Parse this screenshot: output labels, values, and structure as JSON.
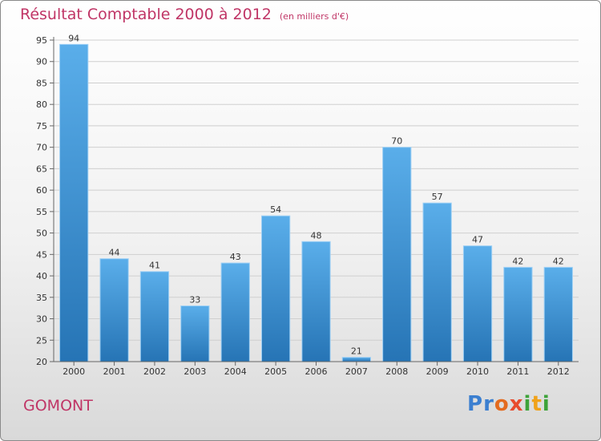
{
  "chart_data": {
    "type": "bar",
    "title": "Résultat Comptable 2000 à 2012",
    "subtitle": "(en milliers d'€)",
    "categories": [
      "2000",
      "2001",
      "2002",
      "2003",
      "2004",
      "2005",
      "2006",
      "2007",
      "2008",
      "2009",
      "2010",
      "2011",
      "2012"
    ],
    "values": [
      94,
      44,
      41,
      33,
      43,
      54,
      48,
      21,
      70,
      57,
      47,
      42,
      42
    ],
    "ylim": [
      20,
      95
    ],
    "yticks": [
      20,
      25,
      30,
      35,
      40,
      45,
      50,
      55,
      60,
      65,
      70,
      75,
      80,
      85,
      90,
      95
    ],
    "xlabel": "",
    "ylabel": "",
    "grid": true
  },
  "commune": "GOMONT",
  "brand": [
    "P",
    "r",
    "o",
    "x",
    "i",
    "t",
    "i"
  ],
  "colors": {
    "bar_top": "#5aaeea",
    "bar_bottom": "#2674b5",
    "title": "#c03566"
  }
}
